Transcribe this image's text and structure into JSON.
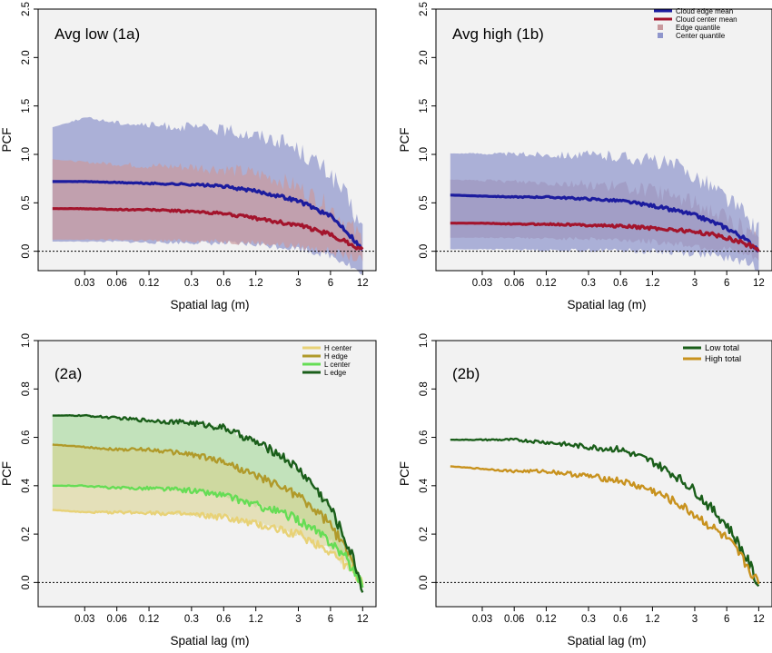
{
  "chart_data": [
    {
      "id": "1a",
      "type": "area",
      "annotation": "Avg low (1a)",
      "xlabel": "Spatial lag (m)",
      "ylabel": "PCF",
      "x_scale": "log",
      "xlim": [
        0.011,
        16
      ],
      "ylim": [
        -0.2,
        2.5
      ],
      "x_ticks": [
        0.03,
        0.06,
        0.12,
        0.3,
        0.6,
        1.2,
        3,
        6,
        12
      ],
      "x_tick_labels": [
        "0.03",
        "0.06",
        "0.12",
        "0.3",
        "0.6",
        "1.2",
        "3",
        "6",
        "12"
      ],
      "y_ticks": [
        0,
        0.5,
        1,
        1.5,
        2,
        2.5
      ],
      "y_tick_labels": [
        "0.0",
        "0.5",
        "1.0",
        "1.5",
        "2.0",
        "2.5"
      ],
      "reference_line": 0,
      "legend": null,
      "x": [
        0.015,
        0.03,
        0.06,
        0.12,
        0.3,
        0.6,
        1.2,
        2,
        3,
        4,
        6,
        8,
        10,
        12
      ],
      "series": [
        {
          "name": "Cloud edge mean",
          "kind": "line",
          "color": "#1c1c9e",
          "values": [
            0.72,
            0.72,
            0.71,
            0.7,
            0.69,
            0.67,
            0.62,
            0.57,
            0.52,
            0.46,
            0.36,
            0.24,
            0.12,
            0.01
          ]
        },
        {
          "name": "Cloud center mean",
          "kind": "line",
          "color": "#a3142c",
          "values": [
            0.44,
            0.44,
            0.43,
            0.43,
            0.41,
            0.39,
            0.34,
            0.3,
            0.27,
            0.23,
            0.17,
            0.11,
            0.06,
            0.01
          ]
        },
        {
          "name": "Center quantile",
          "kind": "band",
          "color": "#8f96cc",
          "lower": [
            0.1,
            0.1,
            0.1,
            0.09,
            0.09,
            0.08,
            0.07,
            0.05,
            0.03,
            0.0,
            -0.04,
            -0.1,
            -0.18,
            -0.25
          ],
          "upper": [
            1.28,
            1.38,
            1.33,
            1.3,
            1.28,
            1.25,
            1.2,
            1.15,
            1.05,
            0.95,
            0.8,
            0.6,
            0.4,
            0.2
          ]
        },
        {
          "name": "Edge quantile",
          "kind": "band",
          "color": "#c99a9e",
          "lower": [
            0.12,
            0.12,
            0.12,
            0.11,
            0.11,
            0.1,
            0.09,
            0.07,
            0.05,
            0.03,
            0.0,
            -0.04,
            -0.07,
            -0.1
          ],
          "upper": [
            0.95,
            0.92,
            0.9,
            0.88,
            0.87,
            0.85,
            0.8,
            0.74,
            0.66,
            0.58,
            0.45,
            0.32,
            0.2,
            0.12
          ]
        }
      ]
    },
    {
      "id": "1b",
      "type": "area",
      "annotation": "Avg high (1b)",
      "xlabel": "Spatial lag (m)",
      "ylabel": "PCF",
      "x_scale": "log",
      "xlim": [
        0.011,
        16
      ],
      "ylim": [
        -0.2,
        2.5
      ],
      "x_ticks": [
        0.03,
        0.06,
        0.12,
        0.3,
        0.6,
        1.2,
        3,
        6,
        12
      ],
      "x_tick_labels": [
        "0.03",
        "0.06",
        "0.12",
        "0.3",
        "0.6",
        "1.2",
        "3",
        "6",
        "12"
      ],
      "y_ticks": [
        0,
        0.5,
        1,
        1.5,
        2,
        2.5
      ],
      "y_tick_labels": [
        "0.0",
        "0.5",
        "1.0",
        "1.5",
        "2.0",
        "2.5"
      ],
      "reference_line": 0,
      "legend": "top-right",
      "x": [
        0.015,
        0.03,
        0.06,
        0.12,
        0.3,
        0.6,
        1.2,
        2,
        3,
        4,
        6,
        8,
        10,
        12
      ],
      "series": [
        {
          "name": "Cloud edge mean",
          "kind": "line",
          "color": "#1c1c9e",
          "values": [
            0.58,
            0.57,
            0.56,
            0.56,
            0.54,
            0.52,
            0.47,
            0.42,
            0.37,
            0.32,
            0.24,
            0.16,
            0.08,
            0.02
          ]
        },
        {
          "name": "Cloud center mean",
          "kind": "line",
          "color": "#a3142c",
          "values": [
            0.29,
            0.29,
            0.28,
            0.28,
            0.27,
            0.26,
            0.24,
            0.22,
            0.2,
            0.18,
            0.14,
            0.1,
            0.06,
            0.02
          ]
        },
        {
          "name": "Edge quantile",
          "kind": "band",
          "color": "#c99a9e",
          "lower": [
            0.14,
            0.14,
            0.14,
            0.13,
            0.13,
            0.12,
            0.1,
            0.08,
            0.06,
            0.04,
            0.01,
            -0.02,
            -0.05,
            -0.08
          ],
          "upper": [
            0.74,
            0.73,
            0.72,
            0.71,
            0.69,
            0.67,
            0.62,
            0.56,
            0.5,
            0.44,
            0.34,
            0.24,
            0.15,
            0.08
          ]
        },
        {
          "name": "Center quantile",
          "kind": "band",
          "color": "#8f96cc",
          "lower": [
            0.02,
            0.02,
            0.02,
            0.01,
            0.01,
            0.01,
            0.0,
            -0.01,
            -0.02,
            -0.04,
            -0.07,
            -0.1,
            -0.13,
            -0.16
          ],
          "upper": [
            1.01,
            1.01,
            1.0,
            1.0,
            0.99,
            0.98,
            0.94,
            0.88,
            0.78,
            0.7,
            0.55,
            0.42,
            0.3,
            0.2
          ]
        }
      ]
    },
    {
      "id": "2a",
      "type": "area",
      "annotation": "(2a)",
      "xlabel": "Spatial lag (m)",
      "ylabel": "PCF",
      "x_scale": "log",
      "xlim": [
        0.011,
        16
      ],
      "ylim": [
        -0.1,
        1.0
      ],
      "x_ticks": [
        0.03,
        0.06,
        0.12,
        0.3,
        0.6,
        1.2,
        3,
        6,
        12
      ],
      "x_tick_labels": [
        "0.03",
        "0.06",
        "0.12",
        "0.3",
        "0.6",
        "1.2",
        "3",
        "6",
        "12"
      ],
      "y_ticks": [
        0,
        0.2,
        0.4,
        0.6,
        0.8,
        1.0
      ],
      "y_tick_labels": [
        "0.0",
        "0.2",
        "0.4",
        "0.6",
        "0.8",
        "1.0"
      ],
      "reference_line": 0,
      "legend": "top-right",
      "x": [
        0.015,
        0.03,
        0.06,
        0.12,
        0.3,
        0.6,
        1.2,
        2,
        3,
        4,
        6,
        8,
        10,
        12
      ],
      "series": [
        {
          "name": "H center",
          "kind": "line",
          "color": "#e8d277",
          "values": [
            0.3,
            0.29,
            0.29,
            0.29,
            0.28,
            0.27,
            0.24,
            0.22,
            0.2,
            0.17,
            0.13,
            0.08,
            0.04,
            0.0
          ]
        },
        {
          "name": "H edge",
          "kind": "line",
          "color": "#b09a2a",
          "values": [
            0.57,
            0.56,
            0.55,
            0.55,
            0.53,
            0.5,
            0.44,
            0.4,
            0.36,
            0.31,
            0.24,
            0.15,
            0.07,
            -0.01
          ]
        },
        {
          "name": "L center",
          "kind": "line",
          "color": "#66dd55",
          "values": [
            0.4,
            0.4,
            0.39,
            0.39,
            0.38,
            0.36,
            0.32,
            0.29,
            0.26,
            0.22,
            0.17,
            0.11,
            0.05,
            -0.01
          ]
        },
        {
          "name": "L edge",
          "kind": "line",
          "color": "#1a5e1a",
          "values": [
            0.69,
            0.69,
            0.68,
            0.67,
            0.66,
            0.64,
            0.58,
            0.53,
            0.47,
            0.41,
            0.31,
            0.19,
            0.09,
            -0.03
          ]
        }
      ]
    },
    {
      "id": "2b",
      "type": "line",
      "annotation": "(2b)",
      "xlabel": "Spatial lag (m)",
      "ylabel": "PCF",
      "x_scale": "log",
      "xlim": [
        0.011,
        16
      ],
      "ylim": [
        -0.1,
        1.0
      ],
      "x_ticks": [
        0.03,
        0.06,
        0.12,
        0.3,
        0.6,
        1.2,
        3,
        6,
        12
      ],
      "x_tick_labels": [
        "0.03",
        "0.06",
        "0.12",
        "0.3",
        "0.6",
        "1.2",
        "3",
        "6",
        "12"
      ],
      "y_ticks": [
        0,
        0.2,
        0.4,
        0.6,
        0.8,
        1.0
      ],
      "y_tick_labels": [
        "0.0",
        "0.2",
        "0.4",
        "0.6",
        "0.8",
        "1.0"
      ],
      "reference_line": 0,
      "legend": "top-right",
      "x": [
        0.015,
        0.03,
        0.06,
        0.12,
        0.3,
        0.6,
        1.2,
        2,
        3,
        4,
        6,
        8,
        10,
        12
      ],
      "series": [
        {
          "name": "Low total",
          "kind": "line",
          "color": "#1a5e1a",
          "values": [
            0.59,
            0.59,
            0.59,
            0.58,
            0.56,
            0.55,
            0.5,
            0.44,
            0.38,
            0.32,
            0.24,
            0.15,
            0.07,
            -0.02
          ]
        },
        {
          "name": "High total",
          "kind": "line",
          "color": "#c8921e",
          "values": [
            0.48,
            0.47,
            0.46,
            0.46,
            0.44,
            0.42,
            0.38,
            0.33,
            0.28,
            0.24,
            0.18,
            0.11,
            0.05,
            -0.01
          ]
        }
      ]
    }
  ]
}
